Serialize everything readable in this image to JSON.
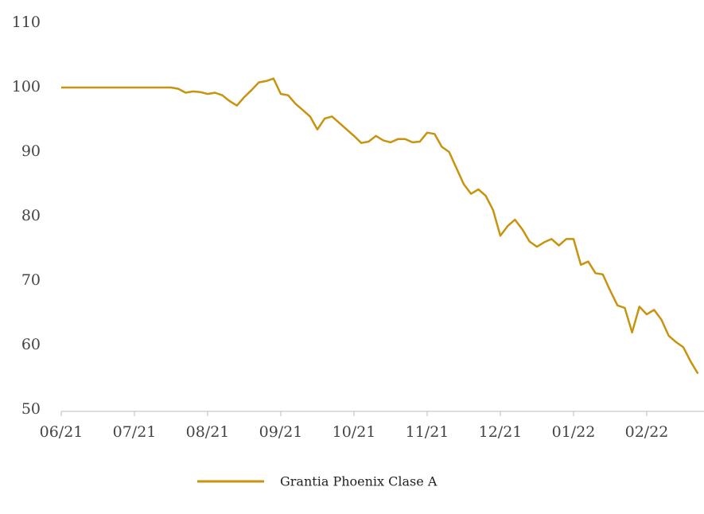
{
  "chart_data": {
    "type": "line",
    "categories": [
      "06/21",
      null,
      null,
      null,
      null,
      null,
      null,
      null,
      null,
      null,
      "07/21",
      null,
      null,
      null,
      null,
      null,
      null,
      null,
      null,
      null,
      "08/21",
      null,
      null,
      null,
      null,
      null,
      null,
      null,
      null,
      null,
      "09/21",
      null,
      null,
      null,
      null,
      null,
      null,
      null,
      null,
      null,
      "10/21",
      null,
      null,
      null,
      null,
      null,
      null,
      null,
      null,
      null,
      "11/21",
      null,
      null,
      null,
      null,
      null,
      null,
      null,
      null,
      null,
      "12/21",
      null,
      null,
      null,
      null,
      null,
      null,
      null,
      null,
      null,
      "01/22",
      null,
      null,
      null,
      null,
      null,
      null,
      null,
      null,
      null,
      "02/22",
      null,
      null,
      null,
      null,
      null,
      null,
      null
    ],
    "series": [
      {
        "name": "Grantia Phoenix Clase A",
        "color": "#c8930e",
        "values": [
          100,
          100,
          100,
          100,
          100,
          100,
          100,
          100,
          100,
          100,
          100,
          100,
          100,
          100,
          100,
          100,
          99.8,
          99.2,
          99.4,
          99.3,
          99.0,
          99.2,
          98.8,
          97.9,
          97.2,
          98.5,
          99.6,
          100.8,
          101.0,
          101.4,
          99.0,
          98.8,
          97.5,
          96.5,
          95.5,
          93.5,
          95.2,
          95.5,
          94.5,
          93.5,
          92.5,
          91.4,
          91.6,
          92.5,
          91.8,
          91.5,
          92.0,
          92.0,
          91.5,
          91.6,
          93.0,
          92.8,
          90.8,
          90.0,
          87.5,
          85.0,
          83.5,
          84.2,
          83.2,
          81.0,
          77.0,
          78.5,
          79.5,
          78.0,
          76.1,
          75.3,
          76.0,
          76.5,
          75.5,
          76.5,
          76.5,
          72.5,
          73.0,
          71.2,
          71.0,
          68.5,
          66.2,
          65.8,
          62.0,
          66.0,
          64.8,
          65.5,
          64.0,
          61.5,
          60.5,
          59.7,
          57.5,
          55.6
        ]
      }
    ],
    "ylim": [
      50,
      110
    ],
    "yticks": [
      50,
      60,
      70,
      80,
      90,
      100,
      110
    ],
    "grid": false,
    "legend": "bottom"
  }
}
